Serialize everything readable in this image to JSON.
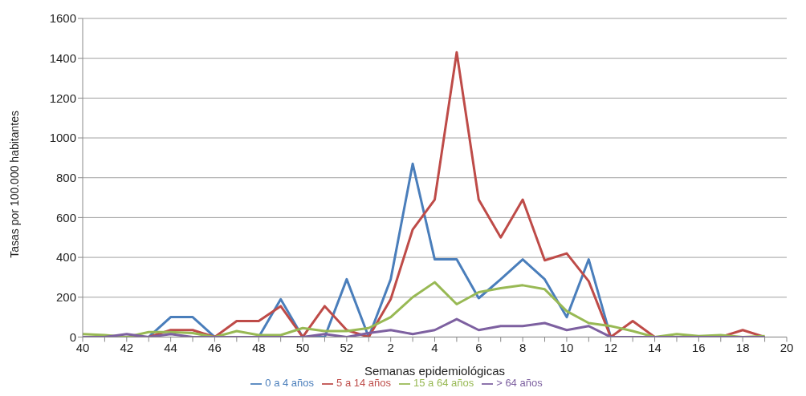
{
  "chart_data": {
    "type": "line",
    "xlabel": "Semanas epidemiológicas",
    "ylabel": "Tasas por 100.000 habitantes",
    "categories": [
      "40",
      null,
      "42",
      null,
      "44",
      null,
      "46",
      null,
      "48",
      null,
      "50",
      null,
      "52",
      null,
      "2",
      null,
      "4",
      null,
      "6",
      null,
      "8",
      null,
      "10",
      null,
      "12",
      null,
      "14",
      null,
      "16",
      null,
      "18",
      null,
      "20"
    ],
    "series": [
      {
        "name": "0 a 4 años",
        "color": "#4a7ebb",
        "values": [
          0,
          0,
          0,
          0,
          100,
          100,
          0,
          0,
          0,
          190,
          0,
          0,
          290,
          0,
          290,
          870,
          390,
          390,
          195,
          290,
          390,
          290,
          100,
          390,
          0,
          0,
          null,
          null,
          null,
          null,
          null,
          null,
          null
        ]
      },
      {
        "name": "5 a 14 años",
        "color": "#be4b48",
        "values": [
          null,
          null,
          0,
          0,
          35,
          35,
          0,
          80,
          80,
          155,
          0,
          155,
          35,
          0,
          190,
          540,
          690,
          1430,
          690,
          500,
          690,
          385,
          420,
          280,
          0,
          80,
          0,
          0,
          0,
          0,
          35,
          0,
          null
        ]
      },
      {
        "name": "15 a 64 años",
        "color": "#98b954",
        "values": [
          15,
          10,
          0,
          25,
          25,
          20,
          0,
          30,
          10,
          10,
          45,
          30,
          30,
          45,
          100,
          200,
          275,
          165,
          225,
          245,
          260,
          240,
          130,
          70,
          55,
          30,
          0,
          15,
          5,
          10,
          0,
          5,
          null
        ]
      },
      {
        "name": "> 64 años",
        "color": "#7d60a0",
        "values": [
          0,
          0,
          15,
          0,
          15,
          0,
          0,
          0,
          0,
          0,
          0,
          15,
          0,
          20,
          35,
          15,
          35,
          90,
          35,
          55,
          55,
          70,
          35,
          55,
          0,
          0,
          0,
          0,
          0,
          0,
          0,
          0,
          null
        ]
      }
    ],
    "ylim": [
      0,
      1600
    ],
    "yticks": [
      0,
      200,
      400,
      600,
      800,
      1000,
      1200,
      1400,
      1600
    ],
    "grid": "y",
    "legend": "bottom",
    "marker": "none",
    "line_style": "solid"
  }
}
